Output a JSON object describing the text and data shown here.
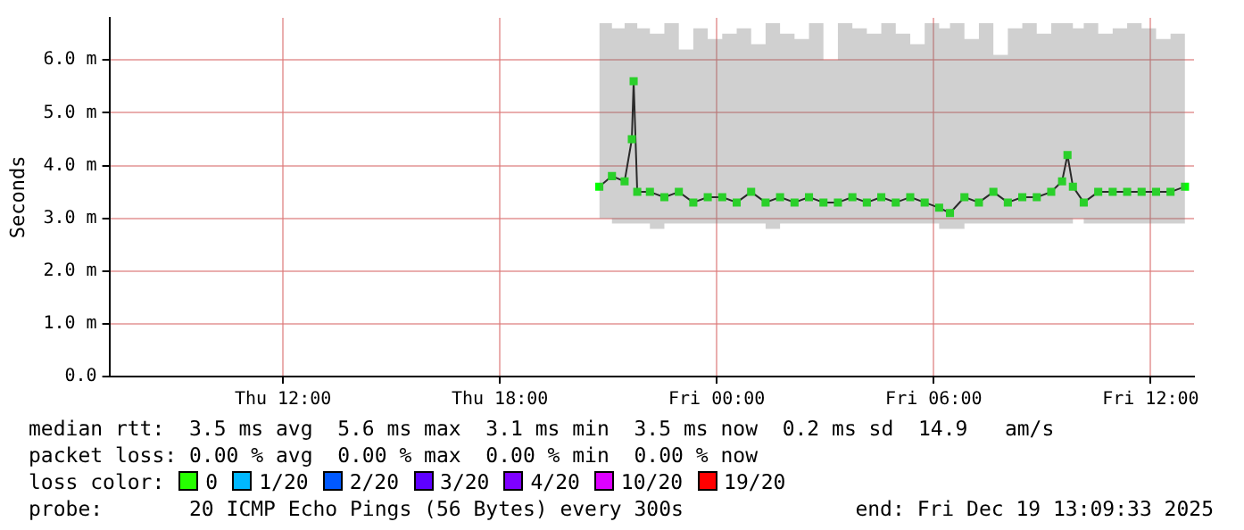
{
  "chart_data": {
    "type": "line",
    "ylabel": "Seconds",
    "x": [
      "2025-12-18T20:45",
      "2025-12-18T21:06",
      "2025-12-18T21:27",
      "2025-12-18T21:39",
      "2025-12-18T21:42",
      "2025-12-18T21:48",
      "2025-12-18T22:09",
      "2025-12-18T22:33",
      "2025-12-18T22:57",
      "2025-12-18T23:21",
      "2025-12-18T23:45",
      "2025-12-19T00:09",
      "2025-12-19T00:33",
      "2025-12-19T00:57",
      "2025-12-19T01:21",
      "2025-12-19T01:45",
      "2025-12-19T02:09",
      "2025-12-19T02:33",
      "2025-12-19T02:57",
      "2025-12-19T03:21",
      "2025-12-19T03:45",
      "2025-12-19T04:09",
      "2025-12-19T04:33",
      "2025-12-19T04:57",
      "2025-12-19T05:21",
      "2025-12-19T05:45",
      "2025-12-19T06:09",
      "2025-12-19T06:27",
      "2025-12-19T06:51",
      "2025-12-19T07:15",
      "2025-12-19T07:39",
      "2025-12-19T08:03",
      "2025-12-19T08:27",
      "2025-12-19T08:51",
      "2025-12-19T09:15",
      "2025-12-19T09:33",
      "2025-12-19T09:42",
      "2025-12-19T09:51",
      "2025-12-19T10:09",
      "2025-12-19T10:33",
      "2025-12-19T10:57",
      "2025-12-19T11:21",
      "2025-12-19T11:45",
      "2025-12-19T12:09",
      "2025-12-19T12:33",
      "2025-12-19T12:57"
    ],
    "series": [
      {
        "color": "#00ff00",
        "values": [
          3.6,
          3.8,
          3.7,
          4.5,
          5.6,
          3.5,
          3.5,
          3.4,
          3.5,
          3.3,
          3.4,
          3.4,
          3.3,
          3.5,
          3.3,
          3.4,
          3.3,
          3.4,
          3.3,
          3.3,
          3.4,
          3.3,
          3.4,
          3.3,
          3.4,
          3.3,
          3.2,
          3.1,
          3.4,
          3.3,
          3.5,
          3.3,
          3.4,
          3.4,
          3.5,
          3.7,
          4.2,
          3.6,
          3.3,
          3.5,
          3.5,
          3.5,
          3.5,
          3.5,
          3.5,
          3.6
        ],
        "lower": [
          3.0,
          2.9,
          2.9,
          2.9,
          2.9,
          2.9,
          2.8,
          2.9,
          2.9,
          2.9,
          2.9,
          2.9,
          2.9,
          2.9,
          2.8,
          2.9,
          2.9,
          2.9,
          2.9,
          2.9,
          2.9,
          2.9,
          2.9,
          2.9,
          2.9,
          2.9,
          2.8,
          2.8,
          2.9,
          2.9,
          2.9,
          2.9,
          2.9,
          2.9,
          2.9,
          2.9,
          2.9,
          3.0,
          2.9,
          2.9,
          2.9,
          2.9,
          2.9,
          2.9,
          2.9,
          2.9
        ],
        "upper": [
          6.7,
          6.6,
          6.7,
          6.7,
          6.7,
          6.6,
          6.5,
          6.7,
          6.2,
          6.6,
          6.4,
          6.5,
          6.6,
          6.3,
          6.7,
          6.5,
          6.4,
          6.7,
          6.0,
          6.7,
          6.6,
          6.5,
          6.7,
          6.5,
          6.3,
          6.7,
          6.6,
          6.7,
          6.4,
          6.7,
          6.1,
          6.6,
          6.7,
          6.5,
          6.7,
          6.7,
          6.7,
          6.6,
          6.7,
          6.5,
          6.6,
          6.7,
          6.6,
          6.4,
          6.5,
          6.5
        ]
      }
    ],
    "xlim": [
      "2025-12-18T07:12",
      "2025-12-19T13:12"
    ],
    "xticks": [
      {
        "value": "2025-12-18T12:00",
        "label": "Thu 12:00"
      },
      {
        "value": "2025-12-18T18:00",
        "label": "Thu 18:00"
      },
      {
        "value": "2025-12-19T00:00",
        "label": "Fri 00:00"
      },
      {
        "value": "2025-12-19T06:00",
        "label": "Fri 06:00"
      },
      {
        "value": "2025-12-19T12:00",
        "label": "Fri 12:00"
      }
    ],
    "ylim": [
      0,
      6.8
    ],
    "yticks": [
      {
        "value": 0,
        "label": "0.0"
      },
      {
        "value": 1,
        "label": "1.0 m"
      },
      {
        "value": 2,
        "label": "2.0 m"
      },
      {
        "value": 3,
        "label": "3.0 m"
      },
      {
        "value": 4,
        "label": "4.0 m"
      },
      {
        "value": 5,
        "label": "5.0 m"
      },
      {
        "value": 6,
        "label": "6.0 m"
      }
    ],
    "grid": true,
    "legend": false,
    "marker": "square",
    "line_style": "solid",
    "annotations": [
      "median rtt:  3.5 ms avg  5.6 ms max  3.1 ms min  3.5 ms now  0.2 ms sd  14.9   am/s",
      "packet loss: 0.00 % avg  0.00 % max  0.00 % min  0.00 % now",
      "loss color:  0  1/20  2/20  3/20  4/20  10/20  19/20",
      "probe:       20 ICMP Echo Pings (56 Bytes) every 300s",
      "end: Fri Dec 19 13:09:33 2025"
    ]
  }
}
